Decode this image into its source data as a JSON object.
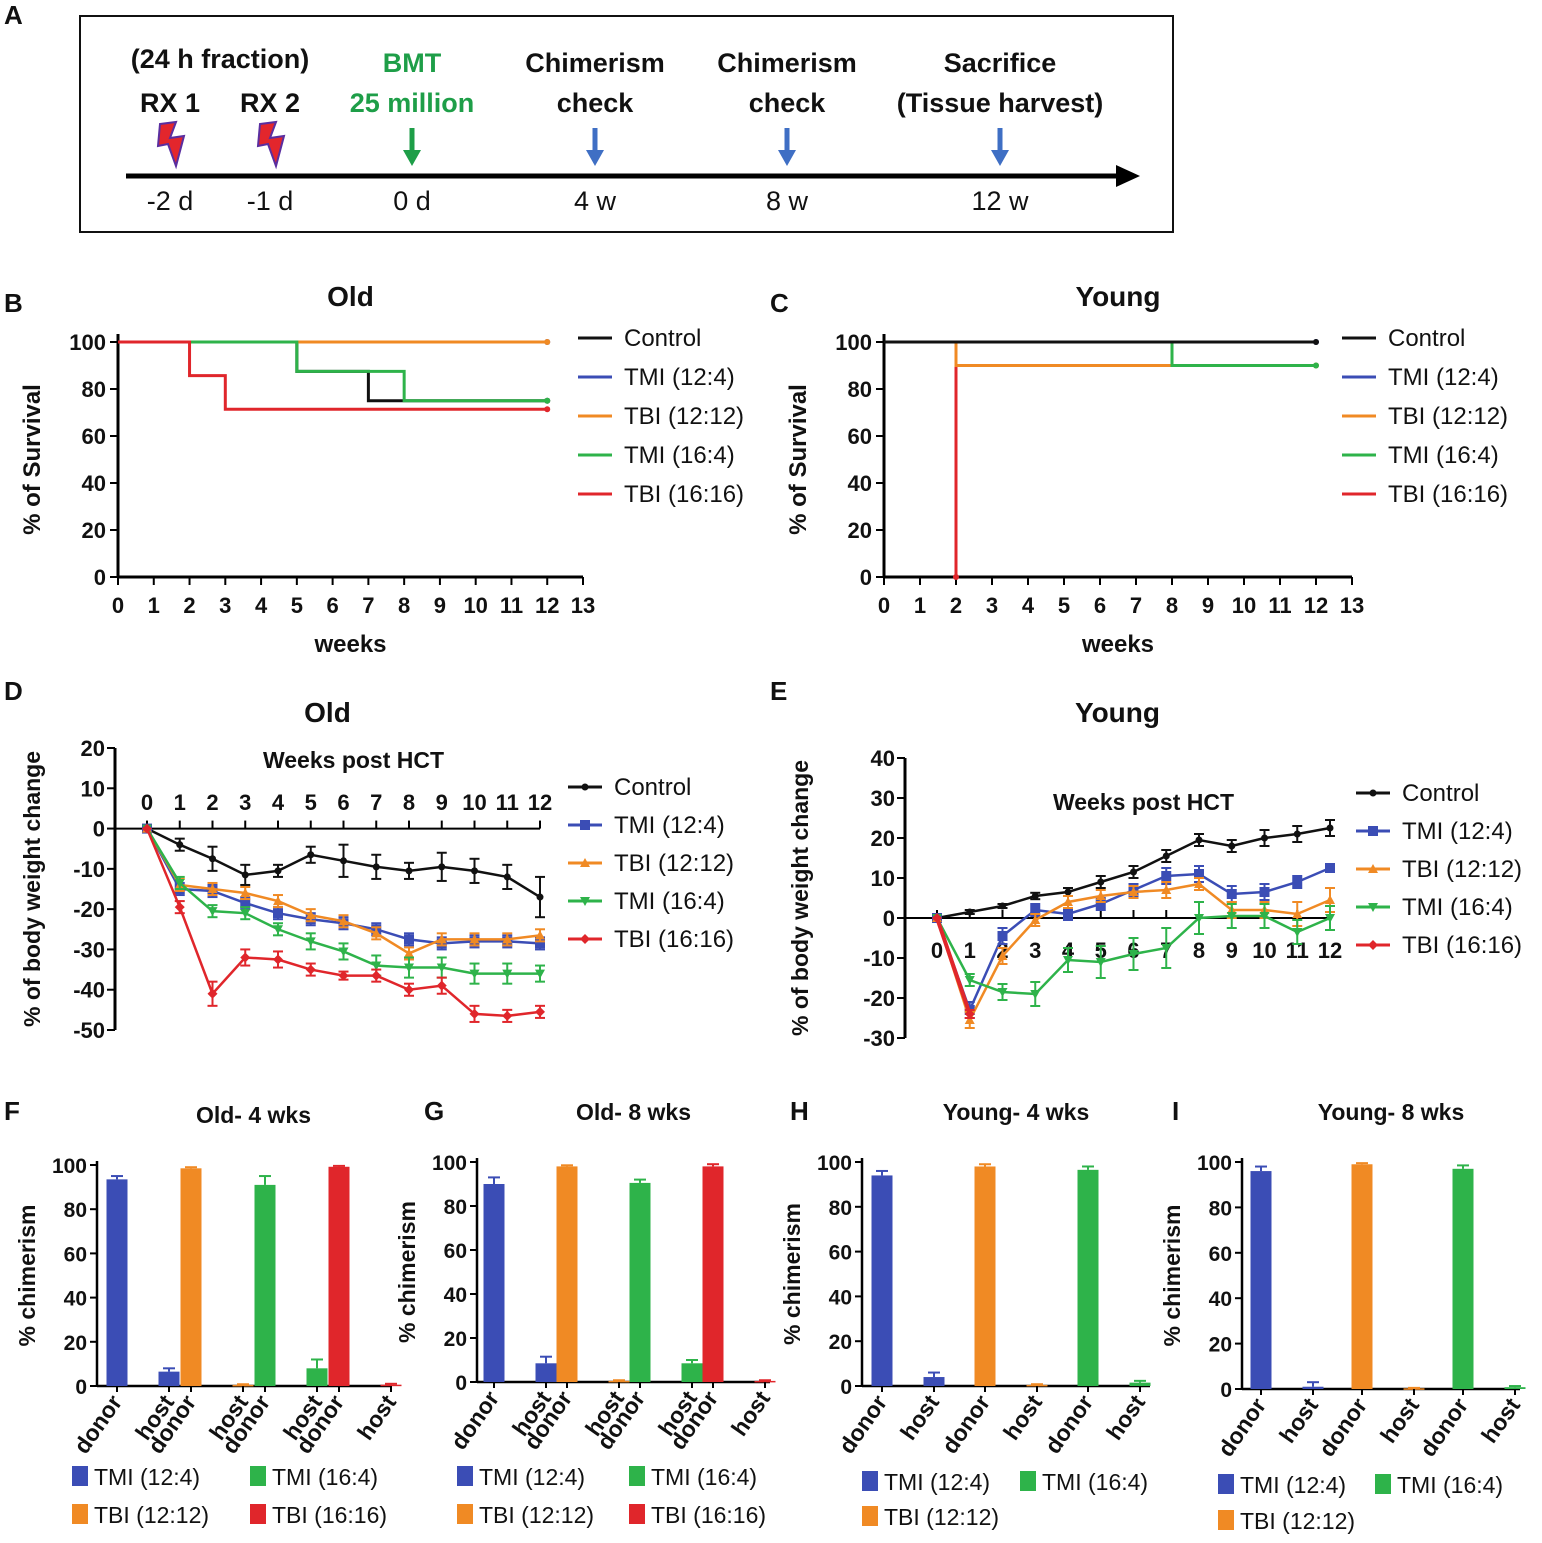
{
  "colors": {
    "control": "#111111",
    "tmi_12_4": "#3b4db5",
    "tbi_12_12": "#f08a24",
    "tmi_16_4": "#2eb34a",
    "tbi_16_16": "#e0262b",
    "timeline_green": "#1e9e48",
    "timeline_blue": "#3f6fc4"
  },
  "panel_letters": [
    "A",
    "B",
    "C",
    "D",
    "E",
    "F",
    "G",
    "H",
    "I"
  ],
  "timeline": {
    "fraction_note": "(24 h fraction)",
    "events": [
      {
        "label_lines": [
          "RX 1"
        ],
        "tick": "-2 d",
        "marker": "lightning"
      },
      {
        "label_lines": [
          "RX 2"
        ],
        "tick": "-1 d",
        "marker": "lightning"
      },
      {
        "label_lines": [
          "BMT",
          "25 million"
        ],
        "tick": "0 d",
        "marker": "arrow-green"
      },
      {
        "label_lines": [
          "Chimerism",
          "check"
        ],
        "tick": "4 w",
        "marker": "arrow-blue"
      },
      {
        "label_lines": [
          "Chimerism",
          "check"
        ],
        "tick": "8 w",
        "marker": "arrow-blue"
      },
      {
        "label_lines": [
          "Sacrifice",
          "(Tissue harvest)"
        ],
        "tick": "12 w",
        "marker": "arrow-blue"
      }
    ]
  },
  "chart_data": [
    {
      "panel": "B",
      "type": "line",
      "step": true,
      "title": "Old",
      "xlabel": "weeks",
      "ylabel": "% of Survival",
      "xlim": [
        0,
        13
      ],
      "ylim": [
        0,
        100
      ],
      "xticks": [
        0,
        1,
        2,
        3,
        4,
        5,
        6,
        7,
        8,
        9,
        10,
        11,
        12,
        13
      ],
      "yticks": [
        0,
        20,
        40,
        60,
        80,
        100
      ],
      "legend": [
        "Control",
        "TMI (12:4)",
        "TBI (12:12)",
        "TMI (16:4)",
        "TBI (16:16)"
      ],
      "series": [
        {
          "name": "Control",
          "key": "control",
          "x": [
            0,
            5,
            7,
            12
          ],
          "y": [
            100,
            87.5,
            75,
            75
          ]
        },
        {
          "name": "TMI (12:4)",
          "key": "tmi_12_4",
          "x": [
            0,
            12
          ],
          "y": [
            100,
            100
          ]
        },
        {
          "name": "TBI (12:12)",
          "key": "tbi_12_12",
          "x": [
            0,
            12
          ],
          "y": [
            100,
            100
          ]
        },
        {
          "name": "TMI (16:4)",
          "key": "tmi_16_4",
          "x": [
            0,
            5,
            8,
            12
          ],
          "y": [
            100,
            87.5,
            75,
            75
          ]
        },
        {
          "name": "TBI (16:16)",
          "key": "tbi_16_16",
          "x": [
            0,
            2,
            3,
            12
          ],
          "y": [
            100,
            85.7,
            71.4,
            71.4
          ]
        }
      ]
    },
    {
      "panel": "C",
      "type": "line",
      "step": true,
      "title": "Young",
      "xlabel": "weeks",
      "ylabel": "% of Survival",
      "xlim": [
        0,
        13
      ],
      "ylim": [
        0,
        100
      ],
      "xticks": [
        0,
        1,
        2,
        3,
        4,
        5,
        6,
        7,
        8,
        9,
        10,
        11,
        12,
        13
      ],
      "yticks": [
        0,
        20,
        40,
        60,
        80,
        100
      ],
      "legend": [
        "Control",
        "TMI (12:4)",
        "TBI (12:12)",
        "TMI (16:4)",
        "TBI (16:16)"
      ],
      "series": [
        {
          "name": "TBI (16:16)",
          "key": "tbi_16_16",
          "x": [
            0,
            2,
            2
          ],
          "y": [
            100,
            100,
            0
          ]
        },
        {
          "name": "TBI (12:12)",
          "key": "tbi_12_12",
          "x": [
            0,
            2,
            12
          ],
          "y": [
            100,
            90,
            90
          ]
        },
        {
          "name": "TMI (16:4)",
          "key": "tmi_16_4",
          "x": [
            0,
            8,
            12
          ],
          "y": [
            100,
            90,
            90
          ]
        },
        {
          "name": "TMI (12:4)",
          "key": "tmi_12_4",
          "x": [
            0,
            12
          ],
          "y": [
            100,
            100
          ]
        },
        {
          "name": "Control",
          "key": "control",
          "x": [
            0,
            12
          ],
          "y": [
            100,
            100
          ]
        }
      ]
    },
    {
      "panel": "D",
      "type": "line",
      "title": "Old",
      "inner_label": "Weeks post HCT",
      "xlabel": "",
      "ylabel": "% of body weight change",
      "xlim": [
        0,
        12
      ],
      "ylim": [
        -50,
        20
      ],
      "xticks": [
        0,
        1,
        2,
        3,
        4,
        5,
        6,
        7,
        8,
        9,
        10,
        11,
        12
      ],
      "yticks": [
        -50,
        -40,
        -30,
        -20,
        -10,
        0,
        10,
        20
      ],
      "legend": [
        "Control",
        "TMI (12:4)",
        "TBI (12:12)",
        "TMI (16:4)",
        "TBI (16:16)"
      ],
      "series": [
        {
          "name": "Control",
          "key": "control",
          "marker": "dot",
          "x": [
            0,
            1,
            2,
            3,
            4,
            5,
            6,
            7,
            8,
            9,
            10,
            11,
            12
          ],
          "y": [
            0,
            -4,
            -7.5,
            -11.5,
            -10.5,
            -6.5,
            -8,
            -9.5,
            -10.5,
            -9.5,
            -10.5,
            -12,
            -17
          ],
          "err": [
            0,
            1.5,
            3,
            2.5,
            1.5,
            2,
            4,
            3,
            2,
            3.5,
            3,
            3,
            5
          ]
        },
        {
          "name": "TMI (12:4)",
          "key": "tmi_12_4",
          "marker": "square",
          "x": [
            0,
            1,
            2,
            3,
            4,
            5,
            6,
            7,
            8,
            9,
            10,
            11,
            12
          ],
          "y": [
            0,
            -15,
            -15.5,
            -18.5,
            -21,
            -22.5,
            -23.5,
            -25,
            -27.5,
            -28.5,
            -28,
            -28,
            -28.5
          ],
          "err": [
            0,
            1.5,
            1.5,
            1.5,
            1.5,
            1.5,
            1.5,
            1.5,
            1.5,
            1.5,
            1.5,
            1.5,
            1.5
          ]
        },
        {
          "name": "TBI (12:12)",
          "key": "tbi_12_12",
          "marker": "triangle",
          "x": [
            0,
            1,
            2,
            3,
            4,
            5,
            6,
            7,
            8,
            9,
            10,
            11,
            12
          ],
          "y": [
            0,
            -14,
            -15,
            -16,
            -18,
            -21.5,
            -23,
            -26,
            -31,
            -27.5,
            -27.5,
            -27.5,
            -26.5
          ],
          "err": [
            0,
            1.5,
            1.5,
            1.5,
            1.5,
            1.5,
            1.5,
            1.5,
            1.5,
            1.5,
            1.5,
            1.5,
            1.5
          ]
        },
        {
          "name": "TMI (16:4)",
          "key": "tmi_16_4",
          "marker": "triangle-down",
          "x": [
            0,
            1,
            2,
            3,
            4,
            5,
            6,
            7,
            8,
            9,
            10,
            11,
            12
          ],
          "y": [
            0,
            -13.5,
            -20.5,
            -21,
            -25,
            -28,
            -30.5,
            -34,
            -34.5,
            -34.5,
            -36,
            -36,
            -36
          ],
          "err": [
            0,
            1.5,
            1.5,
            1.5,
            1.5,
            2,
            2,
            2.5,
            2.5,
            2.5,
            2.5,
            2.5,
            2
          ]
        },
        {
          "name": "TBI (16:16)",
          "key": "tbi_16_16",
          "marker": "diamond",
          "x": [
            0,
            1,
            2,
            3,
            4,
            5,
            6,
            7,
            8,
            9,
            10,
            11,
            12
          ],
          "y": [
            0,
            -19.5,
            -41,
            -32,
            -32.5,
            -35,
            -36.5,
            -36.5,
            -40,
            -39,
            -46,
            -46.5,
            -45.5
          ],
          "err": [
            0,
            1.5,
            3,
            2,
            2,
            1.5,
            1,
            1.5,
            1.5,
            2,
            2,
            1.5,
            1.5
          ]
        }
      ]
    },
    {
      "panel": "E",
      "type": "line",
      "title": "Young",
      "inner_label": "Weeks post HCT",
      "xlabel": "",
      "ylabel": "% of body weight change",
      "xlim": [
        0,
        12
      ],
      "ylim": [
        -30,
        40
      ],
      "xticks": [
        0,
        1,
        2,
        3,
        4,
        5,
        6,
        7,
        8,
        9,
        10,
        11,
        12
      ],
      "yticks": [
        -30,
        -20,
        -10,
        0,
        10,
        20,
        30,
        40
      ],
      "legend": [
        "Control",
        "TMI (12:4)",
        "TBI (12:12)",
        "TMI (16:4)",
        "TBI (16:16)"
      ],
      "series": [
        {
          "name": "Control",
          "key": "control",
          "marker": "dot",
          "x": [
            0,
            1,
            2,
            3,
            4,
            5,
            6,
            7,
            8,
            9,
            10,
            11,
            12
          ],
          "y": [
            0,
            1.5,
            3,
            5.5,
            6.5,
            9,
            11.5,
            15.5,
            19.5,
            18,
            20,
            21,
            22.5
          ],
          "err": [
            0,
            0.5,
            0.5,
            0.8,
            1,
            1.5,
            1.5,
            1.5,
            1.5,
            1.5,
            2,
            2,
            2
          ]
        },
        {
          "name": "TMI (12:4)",
          "key": "tmi_12_4",
          "marker": "square",
          "x": [
            0,
            1,
            2,
            3,
            4,
            5,
            6,
            7,
            8,
            9,
            10,
            11,
            12
          ],
          "y": [
            0,
            -23,
            -4.5,
            2,
            1,
            3.5,
            7,
            10.5,
            11,
            6,
            6.5,
            9,
            12.5
          ],
          "err": [
            0,
            2,
            2,
            1.5,
            1.5,
            1.5,
            1.5,
            2,
            2,
            2,
            2,
            1.5,
            1
          ]
        },
        {
          "name": "TBI (12:12)",
          "key": "tbi_12_12",
          "marker": "triangle",
          "x": [
            0,
            1,
            2,
            3,
            4,
            5,
            6,
            7,
            8,
            9,
            10,
            11,
            12
          ],
          "y": [
            0,
            -25.5,
            -9.5,
            -0.5,
            4,
            5.5,
            6.5,
            7,
            8.5,
            2,
            2,
            1,
            4.5
          ],
          "err": [
            0,
            2,
            2,
            1.5,
            1.5,
            1.5,
            1.5,
            2,
            1.5,
            2,
            2,
            3,
            3
          ]
        },
        {
          "name": "TMI (16:4)",
          "key": "tmi_16_4",
          "marker": "triangle-down",
          "x": [
            0,
            1,
            2,
            3,
            4,
            5,
            6,
            7,
            8,
            9,
            10,
            11,
            12
          ],
          "y": [
            0,
            -15.5,
            -18.5,
            -19,
            -10.5,
            -11,
            -9,
            -7.5,
            0,
            0.5,
            0.5,
            -3.5,
            0
          ],
          "err": [
            0,
            1.5,
            2,
            3,
            3,
            4,
            4,
            5,
            4,
            3,
            3,
            3,
            3
          ]
        },
        {
          "name": "TBI (16:16)",
          "key": "tbi_16_16",
          "marker": "diamond",
          "x": [
            0,
            1
          ],
          "y": [
            0,
            -24
          ],
          "err": [
            0,
            1
          ]
        }
      ]
    },
    {
      "panel": "F",
      "type": "bar",
      "title": "Old- 4 wks",
      "ylabel": "% chimerism",
      "ylim": [
        0,
        100
      ],
      "yticks": [
        0,
        20,
        40,
        60,
        80,
        100
      ],
      "legend": [
        "TMI (12:4)",
        "TMI (16:4)",
        "TBI (12:12)",
        "TBI (16:16)"
      ],
      "groups": [
        {
          "name": "TMI (12:4)",
          "key": "tmi_12_4",
          "categories": [
            "donor",
            "host"
          ],
          "values": [
            93.5,
            6.5
          ],
          "err": [
            1.5,
            1.5
          ]
        },
        {
          "name": "TBI (12:12)",
          "key": "tbi_12_12",
          "categories": [
            "donor",
            "host"
          ],
          "values": [
            98.5,
            0.5
          ],
          "err": [
            0.5,
            0.3
          ]
        },
        {
          "name": "TMI (16:4)",
          "key": "tmi_16_4",
          "categories": [
            "donor",
            "host"
          ],
          "values": [
            91,
            8
          ],
          "err": [
            4,
            4
          ]
        },
        {
          "name": "TBI (16:16)",
          "key": "tbi_16_16",
          "categories": [
            "donor",
            "host"
          ],
          "values": [
            99.2,
            0.6
          ],
          "err": [
            0.4,
            0.4
          ]
        }
      ]
    },
    {
      "panel": "G",
      "type": "bar",
      "title": "Old- 8 wks",
      "ylabel": "% chimerism",
      "ylim": [
        0,
        100
      ],
      "yticks": [
        0,
        20,
        40,
        60,
        80,
        100
      ],
      "legend": [
        "TMI (12:4)",
        "TMI (16:4)",
        "TBI (12:12)",
        "TBI (16:16)"
      ],
      "groups": [
        {
          "name": "TMI (12:4)",
          "key": "tmi_12_4",
          "categories": [
            "donor",
            "host"
          ],
          "values": [
            90,
            8.5
          ],
          "err": [
            3,
            3
          ]
        },
        {
          "name": "TBI (12:12)",
          "key": "tbi_12_12",
          "categories": [
            "donor",
            "host"
          ],
          "values": [
            98,
            0.5
          ],
          "err": [
            0.5,
            0.3
          ]
        },
        {
          "name": "TMI (16:4)",
          "key": "tmi_16_4",
          "categories": [
            "donor",
            "host"
          ],
          "values": [
            90.5,
            8.5
          ],
          "err": [
            1.5,
            1.5
          ]
        },
        {
          "name": "TBI (16:16)",
          "key": "tbi_16_16",
          "categories": [
            "donor",
            "host"
          ],
          "values": [
            98,
            0.5
          ],
          "err": [
            1,
            0.3
          ]
        }
      ]
    },
    {
      "panel": "H",
      "type": "bar",
      "title": "Young- 4 wks",
      "ylabel": "% chimerism",
      "ylim": [
        0,
        100
      ],
      "yticks": [
        0,
        20,
        40,
        60,
        80,
        100
      ],
      "legend": [
        "TMI (12:4)",
        "TMI (16:4)",
        "TBI (12:12)"
      ],
      "groups": [
        {
          "name": "TMI (12:4)",
          "key": "tmi_12_4",
          "categories": [
            "donor",
            "host"
          ],
          "values": [
            94,
            4
          ],
          "err": [
            2,
            2
          ]
        },
        {
          "name": "TBI (12:12)",
          "key": "tbi_12_12",
          "categories": [
            "donor",
            "host"
          ],
          "values": [
            98,
            0.5
          ],
          "err": [
            1,
            0.3
          ]
        },
        {
          "name": "TMI (16:4)",
          "key": "tmi_16_4",
          "categories": [
            "donor",
            "host"
          ],
          "values": [
            96.5,
            1.5
          ],
          "err": [
            1.5,
            0.8
          ]
        }
      ]
    },
    {
      "panel": "I",
      "type": "bar",
      "title": "Young- 8 wks",
      "ylabel": "% chimerism",
      "ylim": [
        0,
        100
      ],
      "yticks": [
        0,
        20,
        40,
        60,
        80,
        100
      ],
      "legend": [
        "TMI (12:4)",
        "TMI (16:4)",
        "TBI (12:12)"
      ],
      "groups": [
        {
          "name": "TMI (12:4)",
          "key": "tmi_12_4",
          "categories": [
            "donor",
            "host"
          ],
          "values": [
            96,
            1
          ],
          "err": [
            2,
            2
          ]
        },
        {
          "name": "TBI (12:12)",
          "key": "tbi_12_12",
          "categories": [
            "donor",
            "host"
          ],
          "values": [
            99,
            0.3
          ],
          "err": [
            0.5,
            0.2
          ]
        },
        {
          "name": "TMI (16:4)",
          "key": "tmi_16_4",
          "categories": [
            "donor",
            "host"
          ],
          "values": [
            97,
            0.8
          ],
          "err": [
            1.5,
            0.5
          ]
        }
      ]
    }
  ]
}
